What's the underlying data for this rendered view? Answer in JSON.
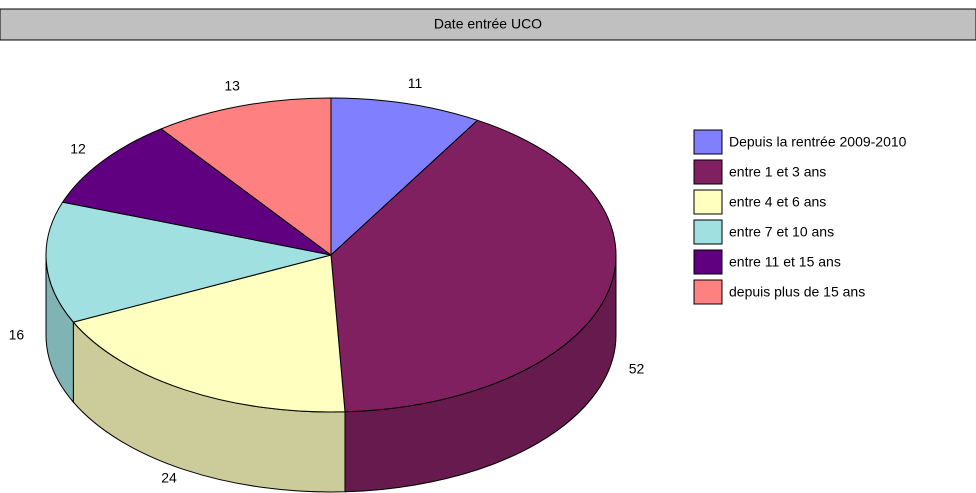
{
  "chart_data": {
    "type": "pie3d",
    "title": "Date entrée UCO",
    "categories": [
      "Depuis la rentrée 2009-2010",
      "entre 1 et 3 ans",
      "entre 4 et 6 ans",
      "entre 7 et 10 ans",
      "entre 11 et 15 ans",
      "depuis plus de 15 ans"
    ],
    "values": [
      11,
      52,
      24,
      16,
      12,
      13
    ],
    "colors": [
      "#8080ff",
      "#802060",
      "#ffffc0",
      "#a0e0e0",
      "#600080",
      "#ff8080"
    ],
    "legend": "right"
  }
}
